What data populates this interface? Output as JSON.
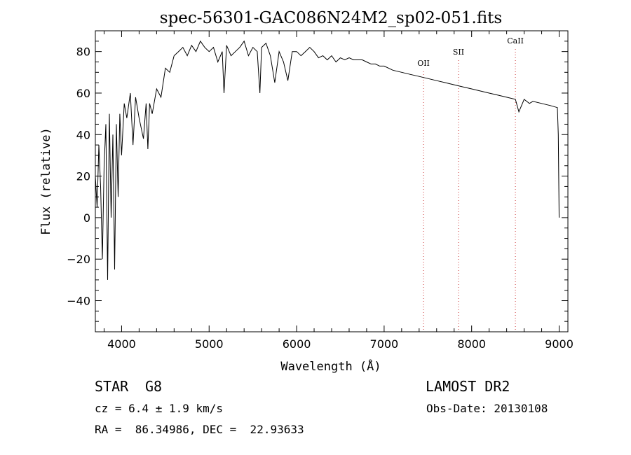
{
  "chart_data": {
    "type": "line",
    "title": "spec-56301-GAC086N24M2_sp02-051.fits",
    "xlabel": "Wavelength (Å)",
    "ylabel": "Flux (relative)",
    "xlim": [
      3700,
      9100
    ],
    "ylim": [
      -55,
      90
    ],
    "x_ticks": [
      4000,
      5000,
      6000,
      7000,
      8000,
      9000
    ],
    "y_ticks": [
      -40,
      -20,
      0,
      20,
      40,
      60,
      80
    ],
    "grid": false,
    "series": [
      {
        "x": [
          3700,
          3720,
          3740,
          3760,
          3780,
          3800,
          3820,
          3840,
          3860,
          3880,
          3900,
          3920,
          3940,
          3960,
          3980,
          4000,
          4030,
          4060,
          4100,
          4130,
          4160,
          4200,
          4250,
          4280,
          4300,
          4320,
          4350,
          4400,
          4450,
          4500,
          4550,
          4600,
          4650,
          4700,
          4750,
          4800,
          4850,
          4900,
          4950,
          5000,
          5050,
          5100,
          5150,
          5170,
          5200,
          5250,
          5300,
          5350,
          5400,
          5450,
          5500,
          5550,
          5580,
          5600,
          5650,
          5700,
          5750,
          5800,
          5850,
          5900,
          5950,
          6000,
          6050,
          6100,
          6150,
          6200,
          6250,
          6300,
          6350,
          6400,
          6450,
          6500,
          6550,
          6600,
          6650,
          6700,
          6750,
          6800,
          6850,
          6900,
          6950,
          7000,
          7100,
          7200,
          7300,
          7400,
          7500,
          7600,
          7700,
          7800,
          7900,
          8000,
          8100,
          8200,
          8300,
          8400,
          8500,
          8540,
          8600,
          8660,
          8700,
          8800,
          8900,
          8980,
          8990,
          9000
        ],
        "y": [
          20,
          5,
          35,
          15,
          -20,
          25,
          45,
          -30,
          50,
          0,
          40,
          -25,
          45,
          10,
          50,
          30,
          55,
          48,
          60,
          35,
          58,
          48,
          38,
          55,
          33,
          55,
          50,
          62,
          58,
          72,
          70,
          78,
          80,
          82,
          78,
          83,
          80,
          85,
          82,
          80,
          82,
          75,
          80,
          60,
          83,
          78,
          80,
          82,
          85,
          78,
          82,
          80,
          60,
          82,
          84,
          78,
          65,
          80,
          75,
          66,
          80,
          80,
          78,
          80,
          82,
          80,
          77,
          78,
          76,
          78,
          75,
          77,
          76,
          77,
          76,
          76,
          76,
          75,
          74,
          74,
          73,
          73,
          71,
          70,
          69,
          68,
          67,
          66,
          65,
          64,
          63,
          62,
          61,
          60,
          59,
          58,
          57,
          51,
          57,
          55,
          56,
          55,
          54,
          53,
          40,
          0
        ]
      }
    ],
    "annotations": [
      {
        "label": "OII",
        "x": 7450
      },
      {
        "label": "SII",
        "x": 7850
      },
      {
        "label": "CaII",
        "x": 8500
      }
    ]
  },
  "info": {
    "class": "STAR",
    "subclass": "G8",
    "survey": "LAMOST DR2",
    "cz": "cz = 6.4 ± 1.9 km/s",
    "obs_date": "Obs-Date: 20130108",
    "coords": "RA =  86.34986, DEC =  22.93633"
  }
}
